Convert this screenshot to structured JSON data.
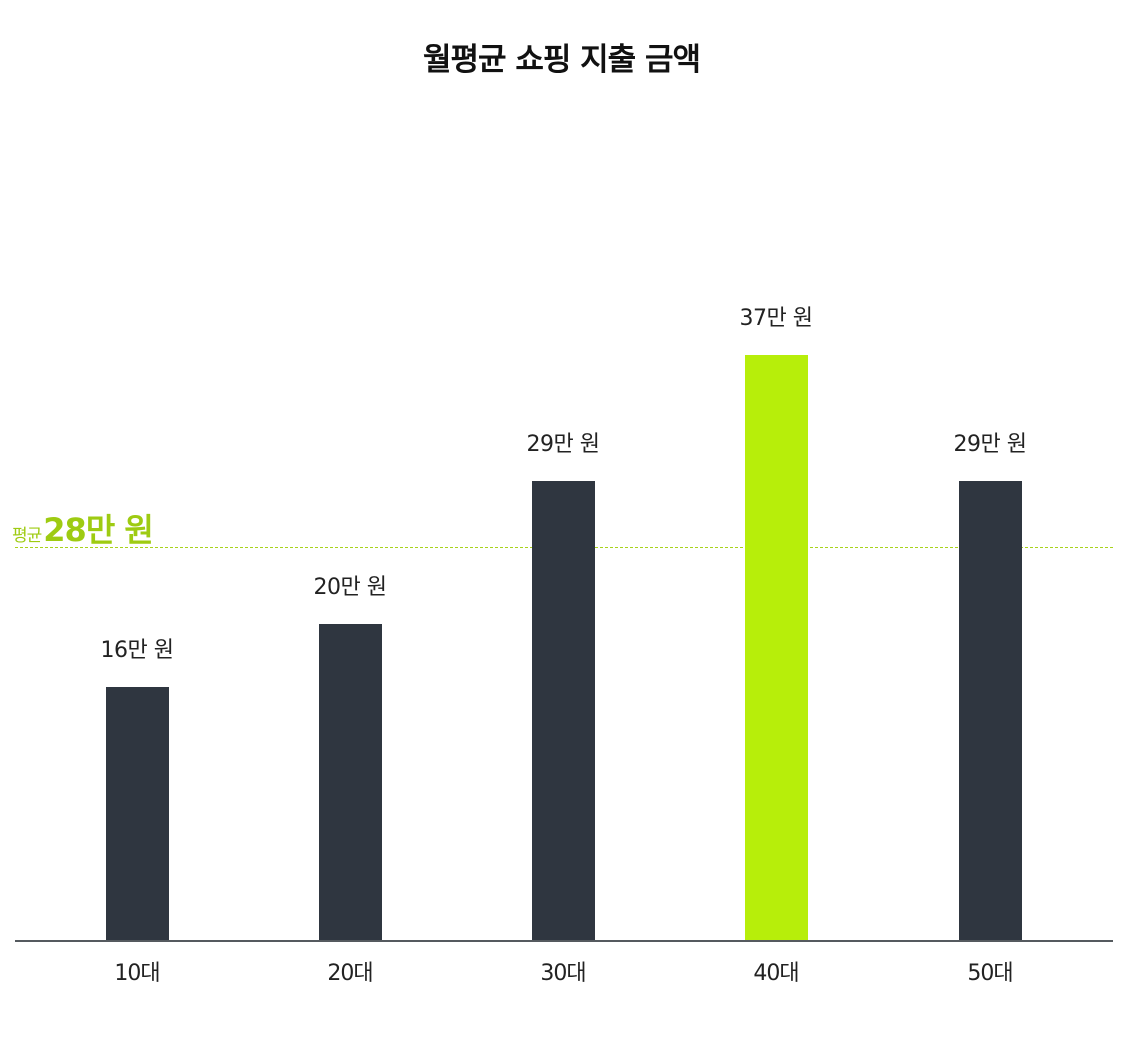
{
  "title": "월평균 쇼핑 지출 금액",
  "average": {
    "prefix": "평균",
    "value_label": "28만 원",
    "value": 28,
    "color": "#a8d41a"
  },
  "colors": {
    "default_bar": "#2f3640",
    "highlight_bar": "#b7ee0a",
    "axis": "#555a5f"
  },
  "bars": [
    {
      "category": "10대",
      "value": 16,
      "label": "16만 원",
      "highlight": false
    },
    {
      "category": "20대",
      "value": 20,
      "label": "20만 원",
      "highlight": false
    },
    {
      "category": "30대",
      "value": 29,
      "label": "29만 원",
      "highlight": false
    },
    {
      "category": "40대",
      "value": 37,
      "label": "37만 원",
      "highlight": true
    },
    {
      "category": "50대",
      "value": 29,
      "label": "29만 원",
      "highlight": false
    }
  ],
  "chart_data": {
    "type": "bar",
    "title": "월평균 쇼핑 지출 금액",
    "categories": [
      "10대",
      "20대",
      "30대",
      "40대",
      "50대"
    ],
    "values": [
      16,
      20,
      29,
      37,
      29
    ],
    "value_labels": [
      "16만 원",
      "20만 원",
      "29만 원",
      "37만 원",
      "29만 원"
    ],
    "unit": "만 원",
    "xlabel": "",
    "ylabel": "",
    "ylim": [
      0,
      40
    ],
    "grid": false,
    "legend": null,
    "annotations": [
      {
        "type": "hline",
        "value": 28,
        "label": "평균 28만 원",
        "style": "dashed",
        "color": "#a8d41a"
      }
    ],
    "highlight": {
      "category": "40대",
      "color": "#b7ee0a"
    },
    "bar_color": "#2f3640"
  }
}
